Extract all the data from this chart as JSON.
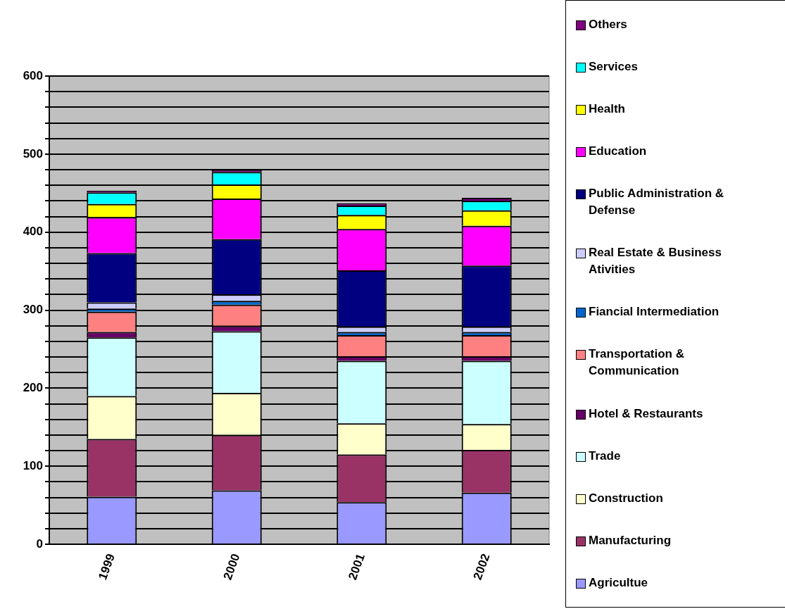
{
  "chart_data": {
    "type": "bar",
    "stacked": true,
    "categories": [
      "1999",
      "2000",
      "2001",
      "2002"
    ],
    "ylim": [
      0,
      600
    ],
    "yticks": [
      0,
      {
        "value": 20,
        "label": null
      },
      {
        "value": 40,
        "label": null
      },
      {
        "value": 60,
        "label": null
      },
      {
        "value": 80,
        "label": null
      },
      100,
      {
        "value": 120,
        "label": null
      },
      {
        "value": 140,
        "label": null
      },
      {
        "value": 160,
        "label": null
      },
      {
        "value": 180,
        "label": null
      },
      200,
      {
        "value": 220,
        "label": null
      },
      {
        "value": 240,
        "label": null
      },
      {
        "value": 260,
        "label": null
      },
      {
        "value": 280,
        "label": null
      },
      300,
      {
        "value": 320,
        "label": null
      },
      {
        "value": 340,
        "label": null
      },
      {
        "value": 360,
        "label": null
      },
      {
        "value": 380,
        "label": null
      },
      400,
      {
        "value": 420,
        "label": null
      },
      {
        "value": 440,
        "label": null
      },
      {
        "value": 460,
        "label": null
      },
      {
        "value": 480,
        "label": null
      },
      500,
      {
        "value": 520,
        "label": null
      },
      {
        "value": 540,
        "label": null
      },
      {
        "value": 560,
        "label": null
      },
      {
        "value": 580,
        "label": null
      },
      600
    ],
    "grid": "y",
    "legend": "right",
    "series": [
      {
        "name": "Agricultue",
        "color": "#9999ff",
        "values": [
          61,
          69,
          54,
          66
        ]
      },
      {
        "name": "Manufacturing",
        "color": "#993366",
        "values": [
          74,
          71,
          61,
          55
        ]
      },
      {
        "name": "Construction",
        "color": "#ffffcc",
        "values": [
          55,
          54,
          40,
          33
        ]
      },
      {
        "name": "Trade",
        "color": "#ccffff",
        "values": [
          75,
          79,
          80,
          81
        ]
      },
      {
        "name": "Hotel & Restaurants",
        "color": "#660066",
        "values": [
          7,
          7,
          6,
          6
        ]
      },
      {
        "name": "Transportation & Communication",
        "color": "#ff8080",
        "values": [
          26,
          27,
          27,
          27
        ]
      },
      {
        "name": "Fiancial Intermediation",
        "color": "#0066cc",
        "values": [
          4,
          5,
          4,
          4
        ]
      },
      {
        "name": "Real Estate & Business Ativities",
        "color": "#ccccff",
        "values": [
          8,
          8,
          7,
          7
        ]
      },
      {
        "name": "Public Administration & Defense",
        "color": "#000080",
        "values": [
          63,
          71,
          72,
          78
        ]
      },
      {
        "name": "Education",
        "color": "#ff00ff",
        "values": [
          46,
          52,
          53,
          51
        ]
      },
      {
        "name": "Health",
        "color": "#ffff00",
        "values": [
          17,
          18,
          18,
          20
        ]
      },
      {
        "name": "Services",
        "color": "#00ffff",
        "values": [
          15,
          16,
          12,
          12
        ]
      },
      {
        "name": "Others",
        "color": "#800080",
        "values": [
          2,
          3,
          3,
          4
        ]
      }
    ]
  }
}
